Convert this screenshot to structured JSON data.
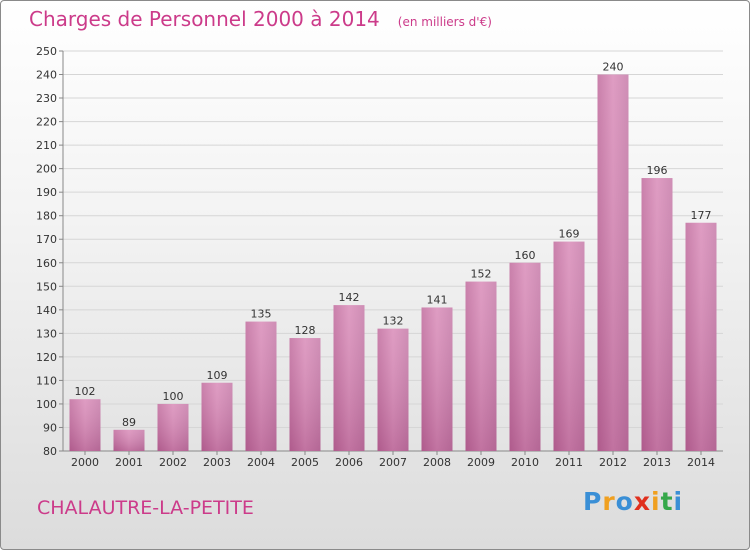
{
  "chart_data": {
    "type": "bar",
    "title": "Charges de Personnel 2000 à 2014",
    "subtitle": "(en milliers d'€)",
    "categories": [
      "2000",
      "2001",
      "2002",
      "2003",
      "2004",
      "2005",
      "2006",
      "2007",
      "2008",
      "2009",
      "2010",
      "2011",
      "2012",
      "2013",
      "2014"
    ],
    "values": [
      102,
      89,
      100,
      109,
      135,
      128,
      142,
      132,
      141,
      152,
      160,
      169,
      240,
      196,
      177
    ],
    "ylim": [
      80,
      250
    ],
    "yticks": [
      80,
      90,
      100,
      110,
      120,
      130,
      140,
      150,
      160,
      170,
      180,
      190,
      200,
      210,
      220,
      230,
      240,
      250
    ],
    "grid": true,
    "xlabel": "",
    "ylabel": "",
    "bar_color": "#d98bb8"
  },
  "footer": {
    "commune": "CHALAUTRE-LA-PETITE",
    "logo_letters": [
      "P",
      "r",
      "o",
      "x",
      "i",
      "t",
      "i"
    ],
    "logo_colors": [
      "#3a8fd6",
      "#f0a020",
      "#3a8fd6",
      "#e0301e",
      "#f0a020",
      "#36a84a",
      "#3a8fd6"
    ]
  },
  "colors": {
    "title": "#cc3b8a"
  }
}
